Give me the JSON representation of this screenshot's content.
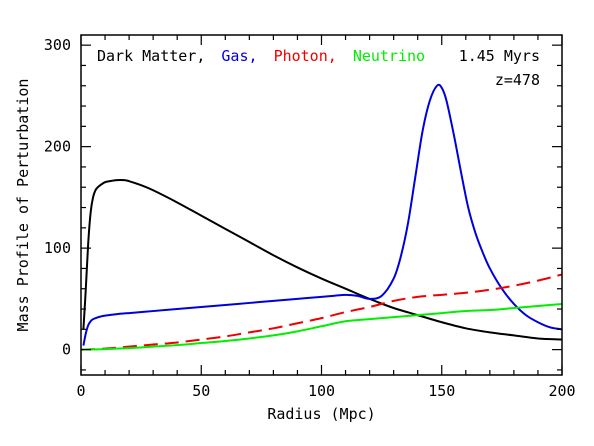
{
  "chart_data": {
    "type": "line",
    "xlabel": "Radius (Mpc)",
    "ylabel": "Mass Profile of Perturbation",
    "xlim": [
      0,
      200
    ],
    "ylim": [
      -25,
      310
    ],
    "xticks": [
      "0",
      "50",
      "100",
      "150",
      "200"
    ],
    "yticks": [
      "0",
      "100",
      "200",
      "300"
    ],
    "grid": false,
    "legend_position": "top-left",
    "annotations": {
      "time": "1.45 Myrs",
      "redshift": "z=478"
    },
    "series": [
      {
        "name": "Dark Matter",
        "legend_label": "Dark Matter,",
        "color": "#000000",
        "dash": "solid",
        "x": [
          1,
          2,
          3,
          4,
          5,
          6,
          7,
          8,
          10,
          12,
          15,
          18,
          20,
          25,
          30,
          40,
          50,
          60,
          70,
          80,
          90,
          100,
          110,
          120,
          130,
          140,
          150,
          160,
          170,
          180,
          190,
          200
        ],
        "y": [
          20,
          60,
          105,
          135,
          150,
          157,
          160,
          162,
          165,
          166,
          167,
          167,
          166,
          162,
          157,
          145,
          132,
          119,
          106,
          93,
          81,
          70,
          60,
          50,
          41,
          34,
          27,
          21,
          17,
          14,
          11,
          10
        ]
      },
      {
        "name": "Gas",
        "legend_label": "Gas,",
        "color": "#0000dd",
        "dash": "solid",
        "x": [
          1,
          2,
          3,
          4,
          5,
          6,
          8,
          10,
          15,
          20,
          30,
          40,
          50,
          60,
          70,
          80,
          90,
          100,
          105,
          110,
          115,
          120,
          125,
          130,
          133,
          136,
          139,
          142,
          145,
          148,
          150,
          152,
          155,
          158,
          161,
          164,
          167,
          170,
          175,
          180,
          185,
          190,
          195,
          200
        ],
        "y": [
          4,
          16,
          24,
          28,
          30,
          31,
          32.5,
          33.5,
          35,
          36,
          38,
          40,
          42,
          44,
          46,
          48,
          50,
          52,
          53,
          54,
          53,
          50,
          53,
          70,
          92,
          125,
          170,
          215,
          245,
          260,
          258,
          245,
          212,
          175,
          140,
          115,
          96,
          80,
          60,
          45,
          34,
          27,
          22,
          20
        ]
      },
      {
        "name": "Photon",
        "legend_label": "Photon,",
        "color": "#ee0000",
        "dash": "dashed",
        "x": [
          0,
          10,
          20,
          30,
          40,
          50,
          60,
          70,
          80,
          90,
          100,
          110,
          120,
          130,
          140,
          150,
          160,
          170,
          180,
          190,
          200
        ],
        "y": [
          0,
          1,
          3,
          5,
          7,
          10,
          13,
          17,
          21,
          26,
          31,
          37,
          42,
          48,
          52,
          54,
          56,
          59,
          63,
          68,
          74
        ]
      },
      {
        "name": "Neutrino",
        "legend_label": "Neutrino",
        "color": "#00ee00",
        "dash": "solid",
        "x": [
          0,
          10,
          20,
          30,
          40,
          50,
          60,
          70,
          80,
          90,
          100,
          110,
          120,
          130,
          140,
          150,
          160,
          170,
          180,
          190,
          200
        ],
        "y": [
          0,
          0.5,
          1.5,
          3,
          4.5,
          6.5,
          8.5,
          11,
          14,
          18,
          23,
          28,
          30,
          32,
          34,
          36,
          38,
          39,
          41,
          43,
          45
        ]
      }
    ]
  }
}
